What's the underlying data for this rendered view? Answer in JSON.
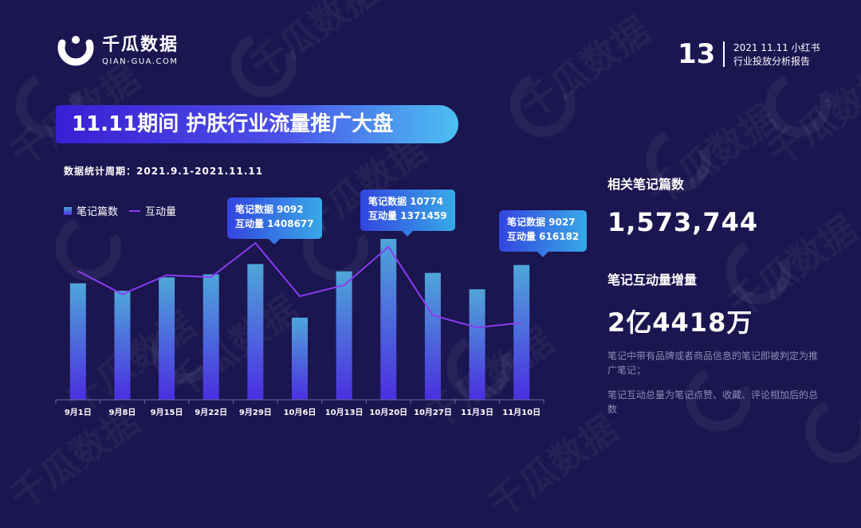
{
  "brand": {
    "name_cn": "千瓜数据",
    "name_en": "QIAN-GUA.COM",
    "watermark_cn": "千瓜数据",
    "watermark_en": "qian-gua.com"
  },
  "page_number": "13",
  "report": {
    "line1": "2021 11.11 小红书",
    "line2": "行业投放分析报告"
  },
  "title": "11.11期间 护肤行业流量推广大盘",
  "period": "数据统计周期：2021.9.1-2021.11.11",
  "legend": {
    "bar": "笔记篇数",
    "line": "互动量"
  },
  "callouts": [
    {
      "line1": "笔记数据 9092",
      "line2": "互动量 1408677"
    },
    {
      "line1": "笔记数据 10774",
      "line2": "互动量 1371459"
    },
    {
      "line1": "笔记数据 9027",
      "line2": "互动量 616182"
    }
  ],
  "stats": {
    "notes_label": "相关笔记篇数",
    "notes_value": "1,573,744",
    "interaction_label": "笔记互动量增量",
    "interaction_value": "2亿4418万"
  },
  "notes": {
    "note1": "笔记中带有品牌或者商品信息的笔记即被判定为推广笔记；",
    "note2": "笔记互动总量为笔记点赞、收藏、评论相加后的总数"
  },
  "colors": {
    "background": "#1b1550",
    "bar_top": "#4fa6d9",
    "bar_bottom": "#4b2ee0",
    "line": "#8a3cf0",
    "note_text": "#8b8fb4"
  },
  "chart_data": {
    "type": "bar",
    "categories": [
      "9月1日",
      "9月8日",
      "9月15日",
      "9月22日",
      "9月29日",
      "10月6日",
      "10月13日",
      "10月20日",
      "10月27日",
      "11月3日",
      "11月10日"
    ],
    "series": [
      {
        "name": "笔记篇数",
        "type": "bar",
        "values": [
          7800,
          7300,
          8200,
          8400,
          9092,
          5500,
          8600,
          10774,
          8500,
          7400,
          9027
        ]
      },
      {
        "name": "互动量",
        "type": "line",
        "values": [
          1130000,
          900000,
          1090000,
          1070000,
          1408677,
          880000,
          990000,
          1371459,
          690000,
          570000,
          616182
        ]
      }
    ],
    "xlabel": "",
    "ylabel": "",
    "grid": false,
    "legend_position": "top-left"
  }
}
